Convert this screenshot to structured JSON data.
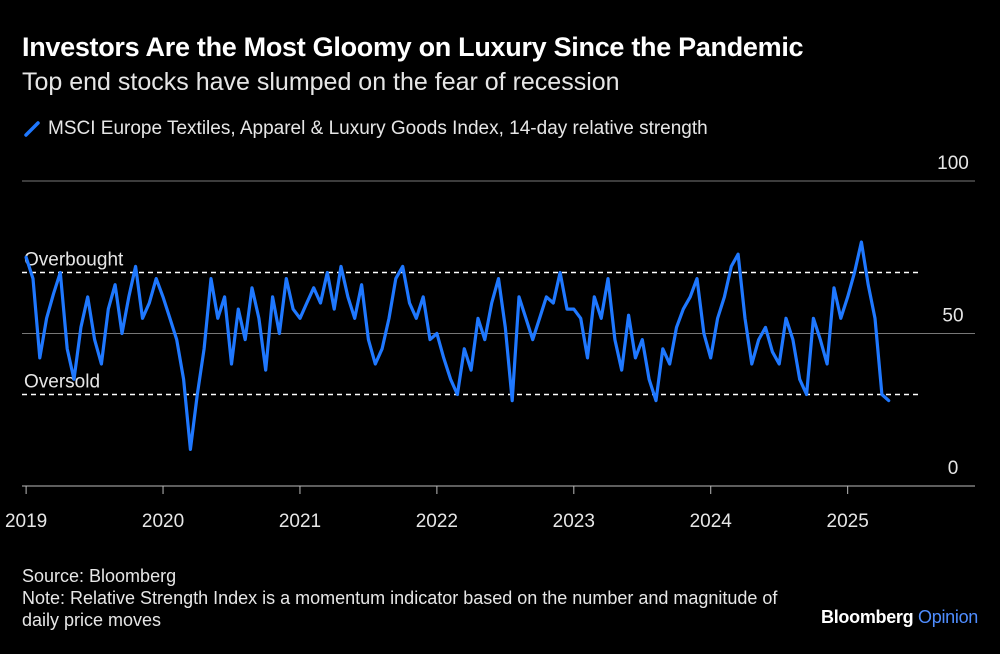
{
  "title": "Investors Are the Most Gloomy on Luxury Since the Pandemic",
  "subtitle": "Top end stocks have slumped on the fear of recession",
  "footer": {
    "source": "Source: Bloomberg",
    "note": "Note: Relative Strength Index is a momentum indicator based on the number and magnitude of daily price moves",
    "brand_main": "Bloomberg",
    "brand_accent": "Opinion"
  },
  "colors": {
    "background": "#000000",
    "series": "#1f78ff",
    "grid": "#777777",
    "text": "#e6e6e6"
  },
  "chart_data": {
    "type": "line",
    "title": "Investors Are the Most Gloomy on Luxury Since the Pandemic",
    "xlabel": "",
    "ylabel": "",
    "ylim": [
      0,
      100
    ],
    "xlim": [
      2018.97,
      2025.93
    ],
    "yticks": [
      100,
      50,
      0
    ],
    "xticks": [
      "2019",
      "2020",
      "2021",
      "2022",
      "2023",
      "2024",
      "2025"
    ],
    "grid": true,
    "legend": "top-left",
    "reference_lines": [
      {
        "label": "Overbought",
        "value": 70
      },
      {
        "label": "Oversold",
        "value": 30
      }
    ],
    "series": [
      {
        "name": "MSCI Europe Textiles, Apparel & Luxury Goods Index, 14-day relative strength",
        "x": [
          2019.0,
          2019.05,
          2019.1,
          2019.15,
          2019.2,
          2019.25,
          2019.3,
          2019.35,
          2019.4,
          2019.45,
          2019.5,
          2019.55,
          2019.6,
          2019.65,
          2019.7,
          2019.75,
          2019.8,
          2019.85,
          2019.9,
          2019.95,
          2020.0,
          2020.05,
          2020.1,
          2020.15,
          2020.2,
          2020.25,
          2020.3,
          2020.35,
          2020.4,
          2020.45,
          2020.5,
          2020.55,
          2020.6,
          2020.65,
          2020.7,
          2020.75,
          2020.8,
          2020.85,
          2020.9,
          2020.95,
          2021.0,
          2021.05,
          2021.1,
          2021.15,
          2021.2,
          2021.25,
          2021.3,
          2021.35,
          2021.4,
          2021.45,
          2021.5,
          2021.55,
          2021.6,
          2021.65,
          2021.7,
          2021.75,
          2021.8,
          2021.85,
          2021.9,
          2021.95,
          2022.0,
          2022.05,
          2022.1,
          2022.15,
          2022.2,
          2022.25,
          2022.3,
          2022.35,
          2022.4,
          2022.45,
          2022.5,
          2022.55,
          2022.6,
          2022.65,
          2022.7,
          2022.75,
          2022.8,
          2022.85,
          2022.9,
          2022.95,
          2023.0,
          2023.05,
          2023.1,
          2023.15,
          2023.2,
          2023.25,
          2023.3,
          2023.35,
          2023.4,
          2023.45,
          2023.5,
          2023.55,
          2023.6,
          2023.65,
          2023.7,
          2023.75,
          2023.8,
          2023.85,
          2023.9,
          2023.95,
          2024.0,
          2024.05,
          2024.1,
          2024.15,
          2024.2,
          2024.25,
          2024.3,
          2024.35,
          2024.4,
          2024.45,
          2024.5,
          2024.55,
          2024.6,
          2024.65,
          2024.7,
          2024.75,
          2024.8,
          2024.85,
          2024.9,
          2024.95,
          2025.0,
          2025.05,
          2025.1,
          2025.15,
          2025.2,
          2025.25,
          2025.3
        ],
        "values": [
          75,
          68,
          42,
          55,
          63,
          70,
          45,
          35,
          52,
          62,
          48,
          40,
          58,
          66,
          50,
          62,
          72,
          55,
          60,
          68,
          62,
          55,
          48,
          35,
          12,
          30,
          45,
          68,
          55,
          62,
          40,
          58,
          48,
          65,
          55,
          38,
          62,
          50,
          68,
          58,
          55,
          60,
          65,
          60,
          70,
          58,
          72,
          62,
          55,
          66,
          48,
          40,
          45,
          55,
          68,
          72,
          60,
          55,
          62,
          48,
          50,
          42,
          35,
          30,
          45,
          38,
          55,
          48,
          60,
          68,
          52,
          28,
          62,
          55,
          48,
          55,
          62,
          60,
          70,
          58,
          58,
          55,
          42,
          62,
          55,
          68,
          48,
          38,
          56,
          42,
          48,
          35,
          28,
          45,
          40,
          52,
          58,
          62,
          68,
          50,
          42,
          55,
          62,
          72,
          76,
          55,
          40,
          48,
          52,
          44,
          40,
          55,
          48,
          35,
          30,
          55,
          48,
          40,
          65,
          55,
          62,
          70,
          80,
          66,
          55,
          30,
          28
        ]
      }
    ]
  }
}
